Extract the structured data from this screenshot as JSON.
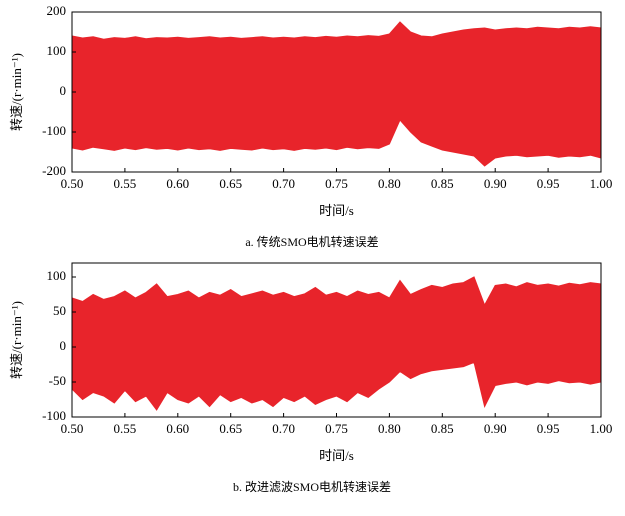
{
  "chart_data": [
    {
      "type": "area",
      "color": "#e8242b",
      "ylabel": "转速/(r·min⁻¹)",
      "xlabel": "时间/s",
      "caption": "a.  传统SMO电机转速误差",
      "xlim": [
        0.5,
        1.0
      ],
      "ylim": [
        -200,
        200
      ],
      "xticks": [
        {
          "value": 0.5,
          "label": "0.50"
        },
        0.55,
        {
          "value": 0.6,
          "label": "0.60"
        },
        0.65,
        {
          "value": 0.7,
          "label": "0.70"
        },
        0.75,
        {
          "value": 0.8,
          "label": "0.80"
        },
        0.85,
        {
          "value": 0.9,
          "label": "0.90"
        },
        0.95,
        {
          "value": 1.0,
          "label": "1.00"
        }
      ],
      "yticks": [
        -200,
        -100,
        0,
        100,
        200
      ],
      "x": [
        0.5,
        0.51,
        0.52,
        0.53,
        0.54,
        0.55,
        0.56,
        0.57,
        0.58,
        0.59,
        0.6,
        0.61,
        0.62,
        0.63,
        0.64,
        0.65,
        0.66,
        0.67,
        0.68,
        0.69,
        0.7,
        0.71,
        0.72,
        0.73,
        0.74,
        0.75,
        0.76,
        0.77,
        0.78,
        0.79,
        0.8,
        0.81,
        0.82,
        0.83,
        0.84,
        0.85,
        0.86,
        0.87,
        0.88,
        0.89,
        0.9,
        0.91,
        0.92,
        0.93,
        0.94,
        0.95,
        0.96,
        0.97,
        0.98,
        0.99,
        1.0
      ],
      "upper": [
        140,
        135,
        138,
        132,
        136,
        134,
        138,
        133,
        136,
        135,
        137,
        134,
        136,
        138,
        135,
        137,
        134,
        136,
        138,
        135,
        137,
        135,
        138,
        136,
        139,
        137,
        140,
        138,
        141,
        139,
        145,
        175,
        150,
        140,
        138,
        145,
        150,
        155,
        158,
        160,
        155,
        158,
        160,
        158,
        162,
        160,
        158,
        162,
        160,
        163,
        160
      ],
      "lower": [
        -140,
        -145,
        -138,
        -142,
        -146,
        -140,
        -144,
        -139,
        -143,
        -141,
        -145,
        -140,
        -144,
        -142,
        -146,
        -141,
        -143,
        -145,
        -140,
        -144,
        -142,
        -146,
        -141,
        -143,
        -140,
        -144,
        -138,
        -142,
        -139,
        -141,
        -130,
        -70,
        -100,
        -125,
        -135,
        -145,
        -150,
        -155,
        -160,
        -185,
        -165,
        -160,
        -158,
        -162,
        -160,
        -158,
        -163,
        -160,
        -162,
        -158,
        -165
      ]
    },
    {
      "type": "area",
      "color": "#e8242b",
      "ylabel": "转速/(r·min⁻¹)",
      "xlabel": "时间/s",
      "caption": "b.  改进滤波SMO电机转速误差",
      "xlim": [
        0.5,
        1.0
      ],
      "ylim": [
        -100,
        120
      ],
      "xticks": [
        {
          "value": 0.5,
          "label": "0.50"
        },
        0.55,
        {
          "value": 0.6,
          "label": "0.60"
        },
        0.65,
        {
          "value": 0.7,
          "label": "0.70"
        },
        0.75,
        {
          "value": 0.8,
          "label": "0.80"
        },
        0.85,
        {
          "value": 0.9,
          "label": "0.90"
        },
        0.95,
        {
          "value": 1.0,
          "label": "1.00"
        }
      ],
      "yticks": [
        -100,
        -50,
        0,
        50,
        100
      ],
      "x": [
        0.5,
        0.51,
        0.52,
        0.53,
        0.54,
        0.55,
        0.56,
        0.57,
        0.58,
        0.59,
        0.6,
        0.61,
        0.62,
        0.63,
        0.64,
        0.65,
        0.66,
        0.67,
        0.68,
        0.69,
        0.7,
        0.71,
        0.72,
        0.73,
        0.74,
        0.75,
        0.76,
        0.77,
        0.78,
        0.79,
        0.8,
        0.81,
        0.82,
        0.83,
        0.84,
        0.85,
        0.86,
        0.87,
        0.88,
        0.89,
        0.9,
        0.91,
        0.92,
        0.93,
        0.94,
        0.95,
        0.96,
        0.97,
        0.98,
        0.99,
        1.0
      ],
      "upper": [
        70,
        65,
        75,
        68,
        72,
        80,
        70,
        78,
        90,
        72,
        75,
        80,
        70,
        78,
        74,
        82,
        72,
        76,
        80,
        74,
        78,
        72,
        76,
        85,
        74,
        78,
        72,
        80,
        75,
        78,
        70,
        95,
        75,
        82,
        88,
        85,
        90,
        92,
        100,
        60,
        88,
        90,
        86,
        92,
        88,
        90,
        87,
        91,
        89,
        92,
        90
      ],
      "lower": [
        -60,
        -75,
        -65,
        -70,
        -80,
        -62,
        -78,
        -70,
        -90,
        -65,
        -75,
        -80,
        -70,
        -85,
        -68,
        -78,
        -72,
        -80,
        -75,
        -85,
        -72,
        -78,
        -70,
        -82,
        -75,
        -70,
        -78,
        -65,
        -72,
        -60,
        -50,
        -35,
        -45,
        -38,
        -34,
        -32,
        -30,
        -28,
        -22,
        -85,
        -55,
        -52,
        -50,
        -54,
        -50,
        -52,
        -48,
        -51,
        -50,
        -53,
        -50
      ]
    }
  ]
}
